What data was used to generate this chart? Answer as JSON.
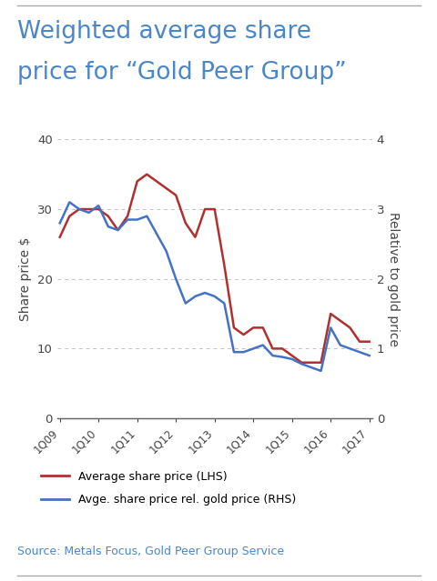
{
  "title_line1": "Weighted average share",
  "title_line2": "price for “Gold Peer Group”",
  "title_color": "#4a86c8",
  "title_fontsize": 19,
  "ylabel_left": "Share price $",
  "ylabel_right": "Relative to gold price",
  "source": "Source: Metals Focus, Gold Peer Group Service",
  "source_color": "#4a86c8",
  "x_labels": [
    "1Q09",
    "1Q10",
    "1Q11",
    "1Q12",
    "1Q13",
    "1Q14",
    "1Q15",
    "1Q16",
    "1Q17"
  ],
  "lhs_color": "#b03030",
  "rhs_color": "#4472c4",
  "lhs_y": [
    26,
    29,
    30,
    30,
    30,
    29,
    27,
    29,
    34,
    35,
    34,
    33,
    32,
    28,
    26,
    30,
    30,
    22,
    13,
    12,
    13,
    13,
    10,
    10,
    9,
    8,
    8,
    8,
    15,
    14,
    13,
    11,
    11
  ],
  "rhs_y": [
    2.8,
    3.1,
    3.0,
    2.95,
    3.05,
    2.75,
    2.7,
    2.85,
    2.85,
    2.9,
    2.65,
    2.4,
    2.0,
    1.65,
    1.75,
    1.8,
    1.75,
    1.65,
    0.95,
    0.95,
    1.0,
    1.05,
    0.9,
    0.88,
    0.85,
    0.78,
    0.73,
    0.68,
    1.3,
    1.05,
    1.0,
    0.95,
    0.9
  ],
  "ylim_left": [
    0,
    40
  ],
  "ylim_right": [
    0,
    4
  ],
  "yticks_left": [
    0,
    10,
    20,
    30,
    40
  ],
  "yticks_right": [
    0,
    1,
    2,
    3,
    4
  ],
  "legend1": "Average share price (LHS)",
  "legend2": "Avge. share price rel. gold price (RHS)",
  "background_color": "#ffffff",
  "grid_color": "#999999",
  "border_color": "#cccccc"
}
